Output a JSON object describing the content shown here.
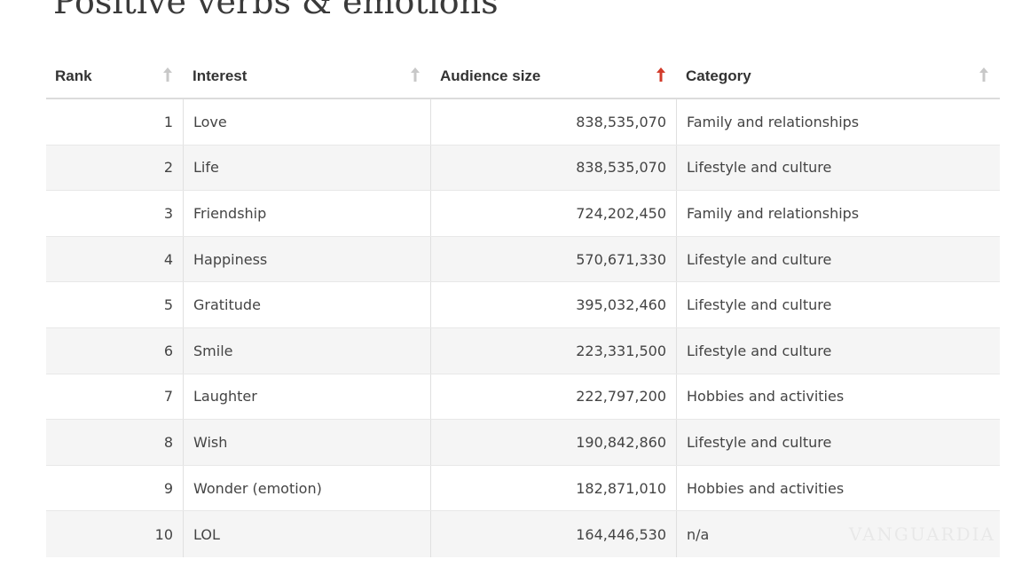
{
  "page": {
    "title": "Positive verbs & emotions"
  },
  "colors": {
    "sort_active": "#d23b2a",
    "sort_inactive": "#c8c8c8",
    "row_alt": "#f5f5f5"
  },
  "table": {
    "columns": [
      {
        "label": "Rank",
        "sort": "inactive",
        "icon": "sort-arrow-icon"
      },
      {
        "label": "Interest",
        "sort": "inactive",
        "icon": "sort-arrow-icon"
      },
      {
        "label": "Audience size",
        "sort": "active",
        "icon": "sort-arrow-icon"
      },
      {
        "label": "Category",
        "sort": "inactive",
        "icon": "sort-arrow-icon"
      }
    ],
    "rows": [
      {
        "rank": "1",
        "interest": "Love",
        "audience": "838,535,070",
        "category": "Family and relationships"
      },
      {
        "rank": "2",
        "interest": "Life",
        "audience": "838,535,070",
        "category": "Lifestyle and culture"
      },
      {
        "rank": "3",
        "interest": "Friendship",
        "audience": "724,202,450",
        "category": "Family and relationships"
      },
      {
        "rank": "4",
        "interest": "Happiness",
        "audience": "570,671,330",
        "category": "Lifestyle and culture"
      },
      {
        "rank": "5",
        "interest": "Gratitude",
        "audience": "395,032,460",
        "category": "Lifestyle and culture"
      },
      {
        "rank": "6",
        "interest": "Smile",
        "audience": "223,331,500",
        "category": "Lifestyle and culture"
      },
      {
        "rank": "7",
        "interest": "Laughter",
        "audience": "222,797,200",
        "category": "Hobbies and activities"
      },
      {
        "rank": "8",
        "interest": "Wish",
        "audience": "190,842,860",
        "category": "Lifestyle and culture"
      },
      {
        "rank": "9",
        "interest": "Wonder (emotion)",
        "audience": "182,871,010",
        "category": "Hobbies and activities"
      },
      {
        "rank": "10",
        "interest": "LOL",
        "audience": "164,446,530",
        "category": "n/a"
      }
    ]
  },
  "watermark": {
    "text": "VANGUARDIA"
  }
}
